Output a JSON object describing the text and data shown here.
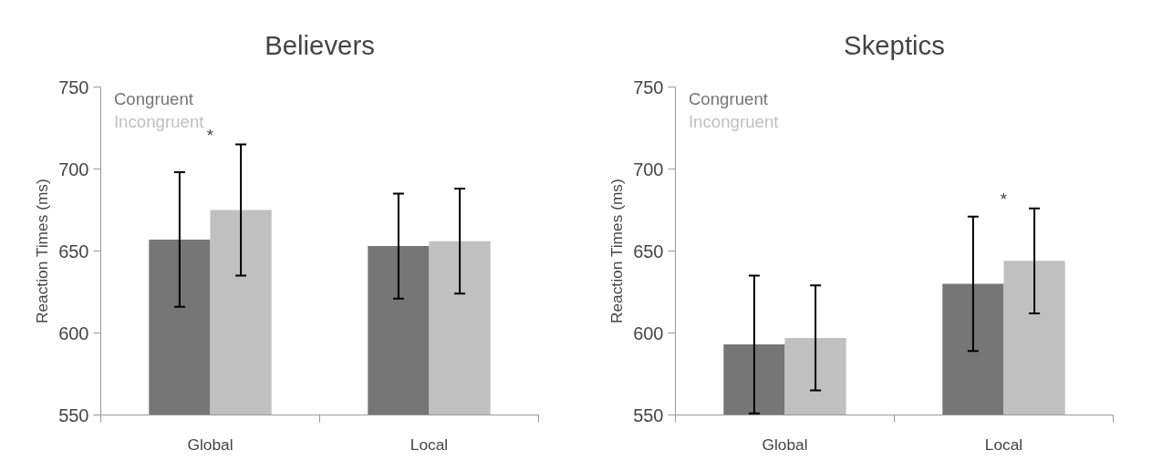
{
  "chart_data": [
    {
      "type": "bar",
      "title": "Believers",
      "ylabel": "Reaction Times (ms)",
      "categories": [
        "Global",
        "Local"
      ],
      "ylim": [
        550,
        750
      ],
      "yticks": [
        550,
        600,
        650,
        700,
        750
      ],
      "series": [
        {
          "name": "Congruent",
          "color": "#767676",
          "values": [
            657,
            653
          ],
          "errors": [
            [
              616,
              698
            ],
            [
              621,
              685
            ]
          ]
        },
        {
          "name": "Incongruent",
          "color": "#c0c0c0",
          "values": [
            675,
            656
          ],
          "errors": [
            [
              635,
              715
            ],
            [
              624,
              688
            ]
          ]
        }
      ],
      "annotations": [
        "*"
      ]
    },
    {
      "type": "bar",
      "title": "Skeptics",
      "ylabel": "Reaction Times (ms)",
      "categories": [
        "Global",
        "Local"
      ],
      "ylim": [
        550,
        750
      ],
      "yticks": [
        550,
        600,
        650,
        700,
        750
      ],
      "series": [
        {
          "name": "Congruent",
          "color": "#767676",
          "values": [
            593,
            630
          ],
          "errors": [
            [
              551,
              635
            ],
            [
              589,
              671
            ]
          ]
        },
        {
          "name": "Incongruent",
          "color": "#c0c0c0",
          "values": [
            597,
            644
          ],
          "errors": [
            [
              565,
              629
            ],
            [
              612,
              676
            ]
          ]
        }
      ],
      "annotations": [
        "*"
      ]
    }
  ]
}
